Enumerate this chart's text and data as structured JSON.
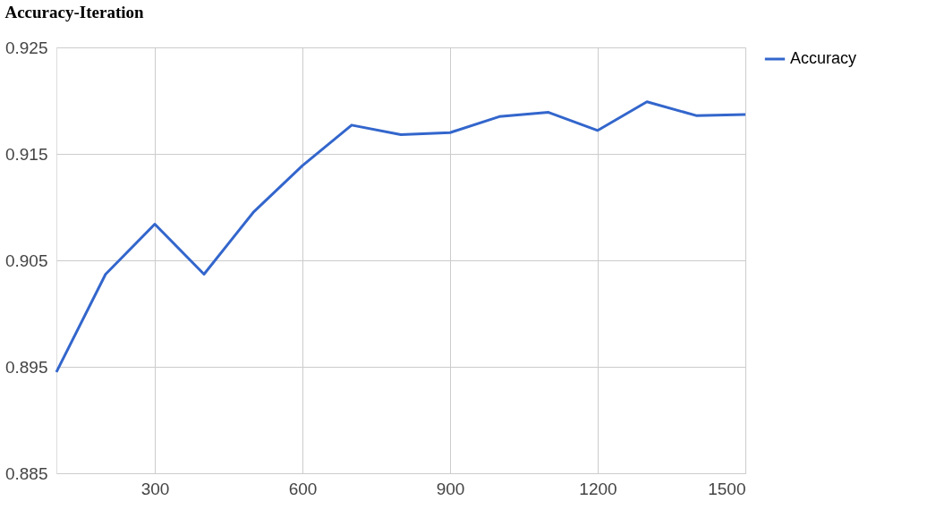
{
  "chart_data": {
    "type": "line",
    "title": "Accuracy-Iteration",
    "x": [
      100,
      200,
      300,
      400,
      500,
      600,
      700,
      800,
      900,
      1000,
      1100,
      1200,
      1300,
      1400,
      1500
    ],
    "series": [
      {
        "name": "Accuracy",
        "color": "#3366cc",
        "values": [
          0.8945,
          0.9037,
          0.9084,
          0.9037,
          0.9095,
          0.9139,
          0.9177,
          0.9168,
          0.917,
          0.9185,
          0.9189,
          0.9172,
          0.9199,
          0.9186,
          0.9187
        ]
      }
    ],
    "xlim": [
      100,
      1500
    ],
    "xticks": [
      300,
      600,
      900,
      1200,
      1500
    ],
    "ylim": [
      0.885,
      0.925
    ],
    "yticks": [
      0.885,
      0.895,
      0.905,
      0.915,
      0.925
    ],
    "grid": true,
    "legend": "top right",
    "marker": "none",
    "line_style": "solid"
  }
}
